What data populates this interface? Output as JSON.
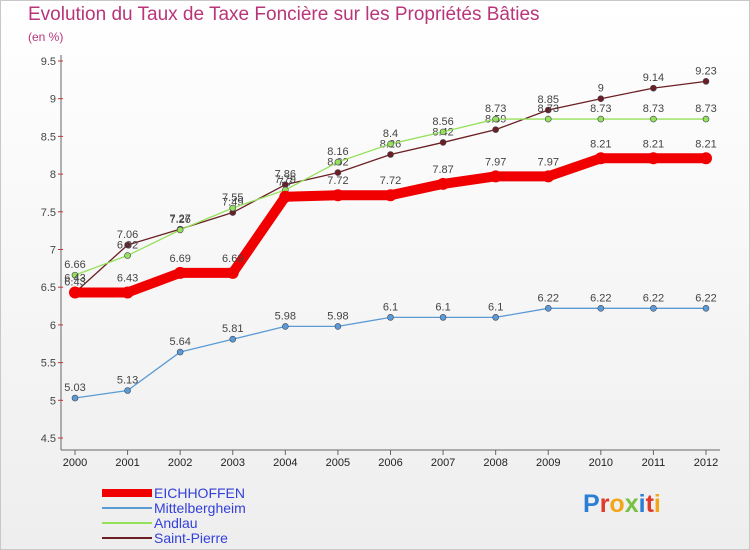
{
  "title": "Evolution du Taux de Taxe Foncière sur les Propriétés Bâties",
  "subtitle": "(en %)",
  "brand": "Proxiti",
  "chart_data": {
    "type": "line",
    "title": "Evolution du Taux de Taxe Foncière sur les Propriétés Bâties",
    "ylabel": "(en %)",
    "xlabel": "",
    "ylim": [
      4.5,
      9.5
    ],
    "yticks": [
      "4.5",
      "5",
      "5.5",
      "6",
      "6.5",
      "7",
      "7.5",
      "8",
      "8.5",
      "9",
      "9.5"
    ],
    "categories": [
      "2000",
      "2001",
      "2002",
      "2003",
      "2004",
      "2005",
      "2006",
      "2007",
      "2008",
      "2009",
      "2010",
      "2011",
      "2012"
    ],
    "series": [
      {
        "name": "Saint-Pierre",
        "color": "#6b1f24",
        "values": [
          6.43,
          7.06,
          7.27,
          7.49,
          7.86,
          8.02,
          8.26,
          8.42,
          8.59,
          8.85,
          9,
          9.14,
          9.23
        ]
      },
      {
        "name": "Andlau",
        "color": "#96e15a",
        "values": [
          6.66,
          6.92,
          7.26,
          7.55,
          7.79,
          8.16,
          8.4,
          8.56,
          8.73,
          8.73,
          8.73,
          8.73,
          8.73
        ]
      },
      {
        "name": "Mittelbergheim",
        "color": "#5b9bd5",
        "values": [
          5.03,
          5.13,
          5.64,
          5.81,
          5.98,
          5.98,
          6.1,
          6.1,
          6.1,
          6.22,
          6.22,
          6.22,
          6.22
        ]
      },
      {
        "name": "EICHHOFFEN",
        "color": "#f00000",
        "values": [
          6.43,
          6.43,
          6.69,
          6.69,
          7.7,
          7.72,
          7.72,
          7.87,
          7.97,
          7.97,
          8.21,
          8.21,
          8.21
        ]
      }
    ],
    "legend": [
      "EICHHOFFEN",
      "Mittelbergheim",
      "Andlau",
      "Saint-Pierre"
    ],
    "legend_position": "bottom-left"
  }
}
